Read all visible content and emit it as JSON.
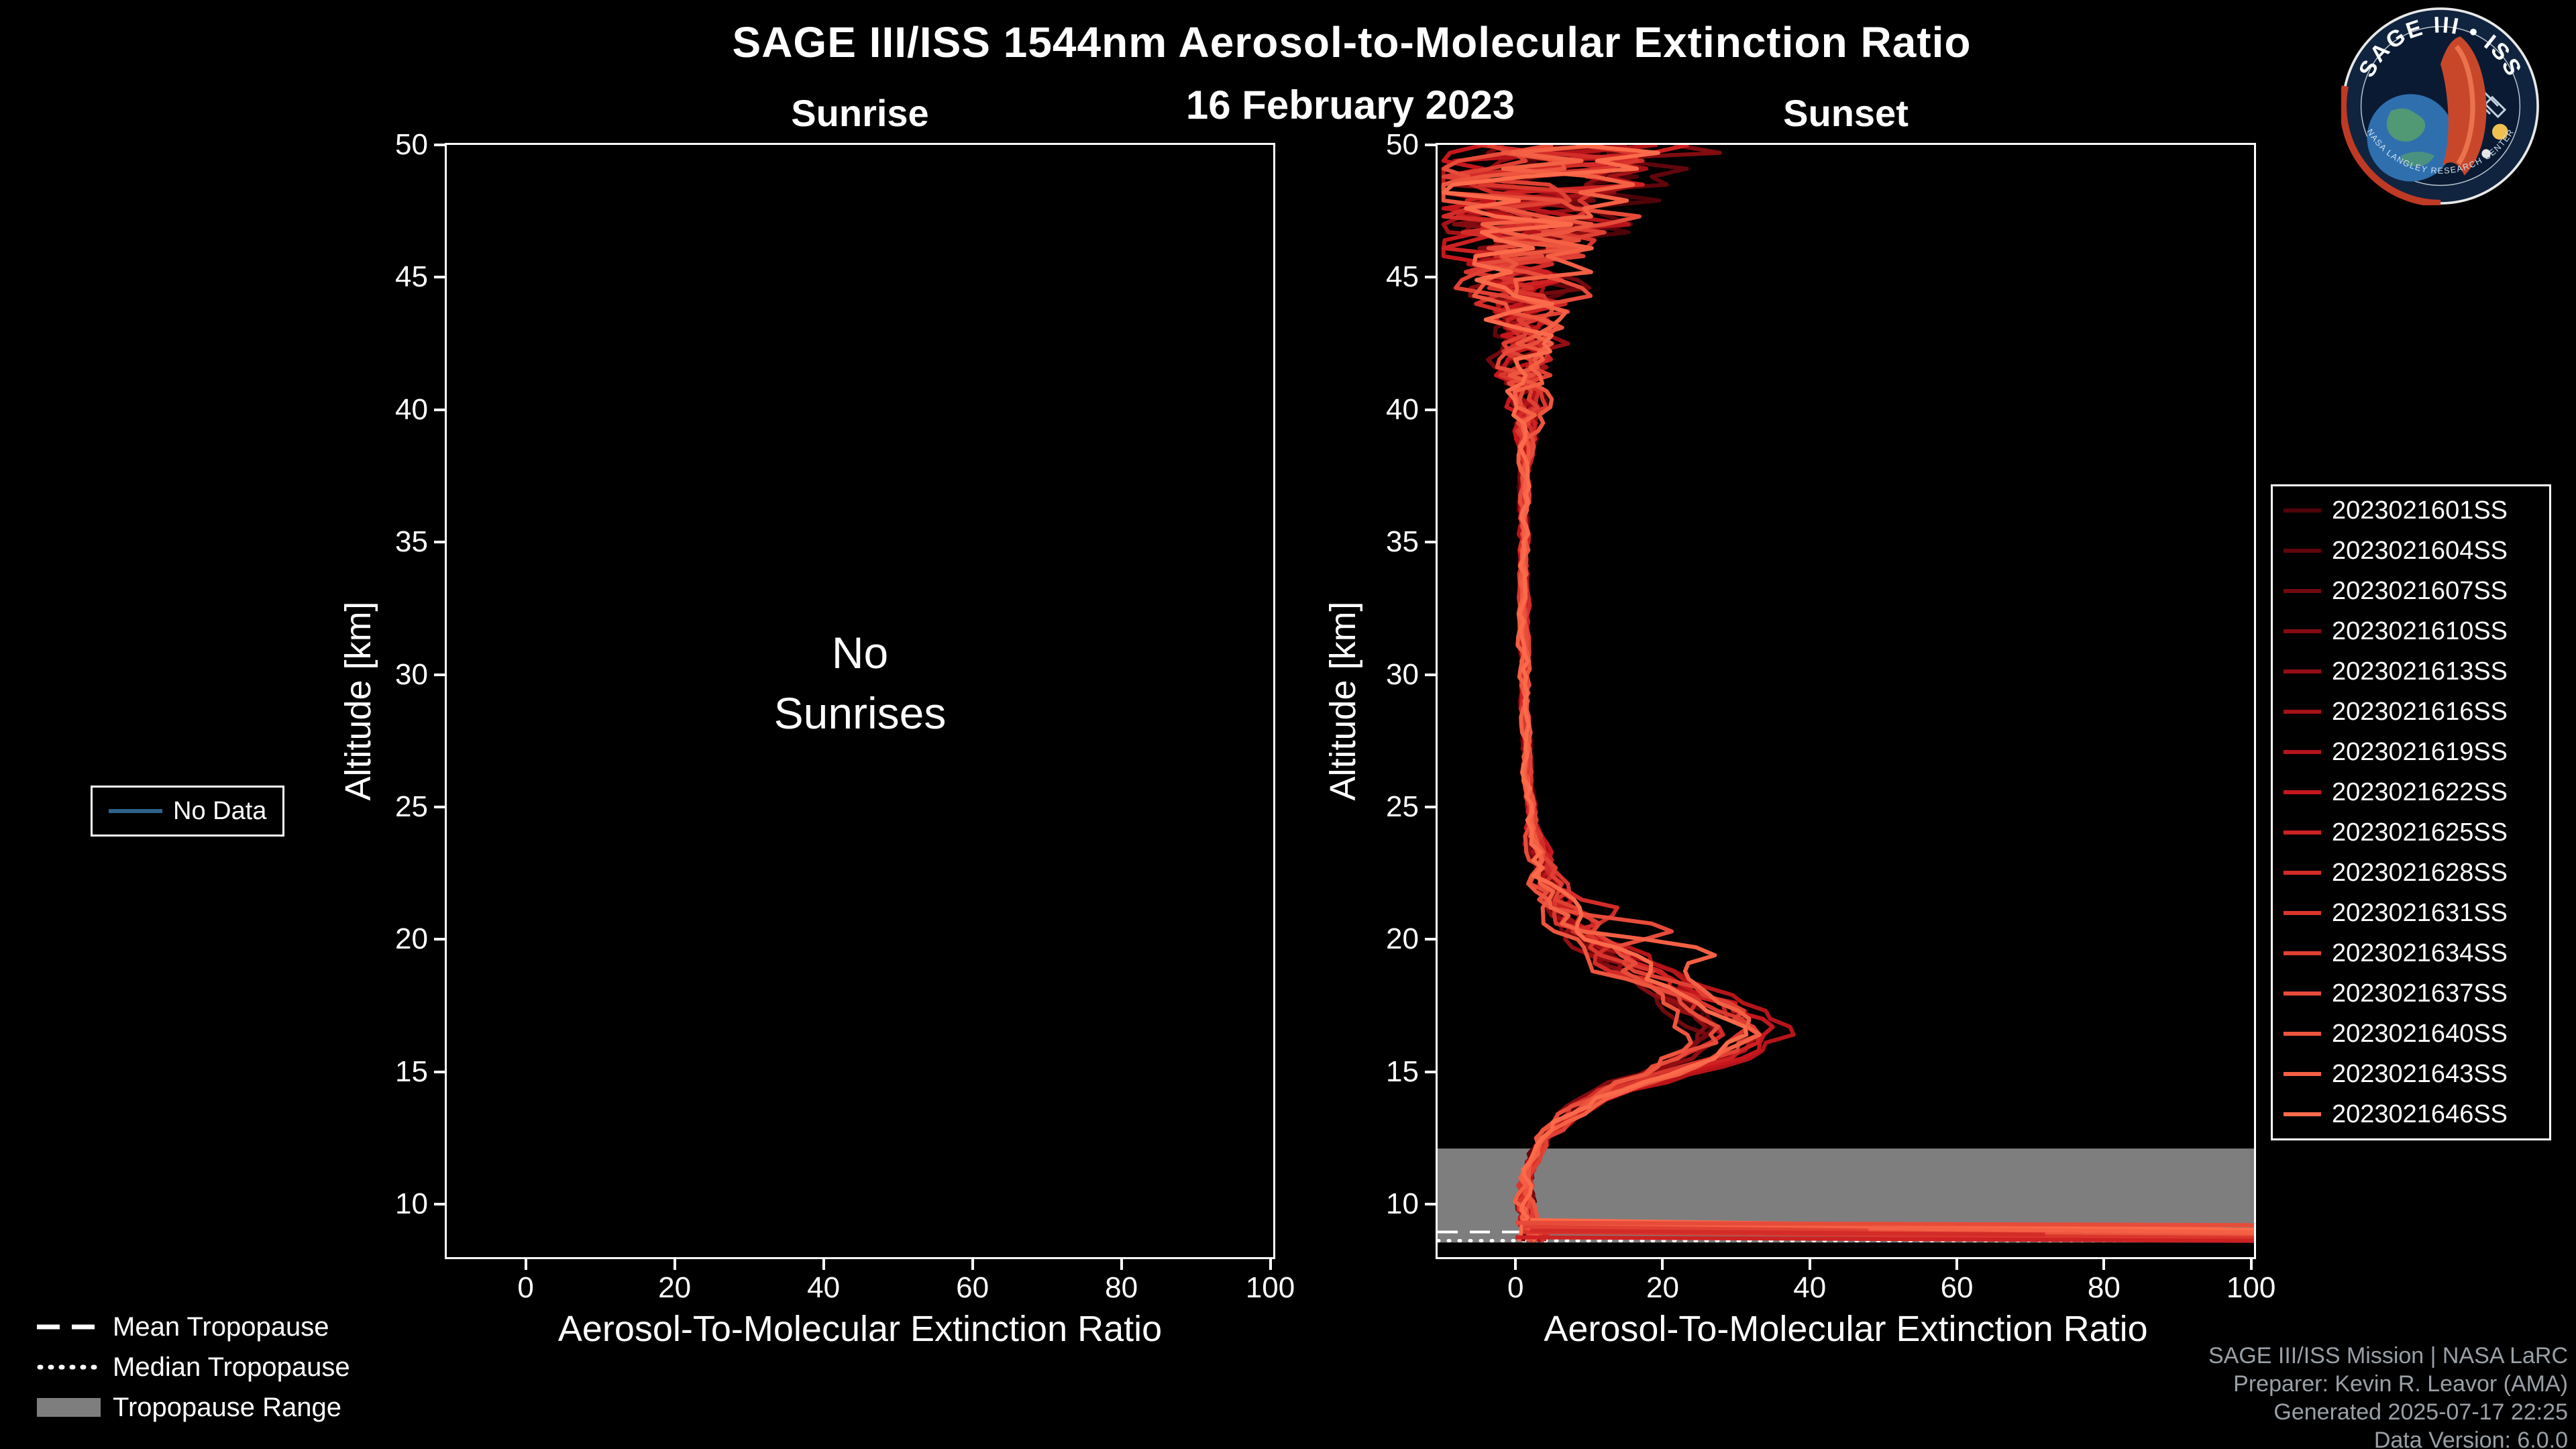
{
  "header": {
    "title": "SAGE III/ISS 1544nm Aerosol-to-Molecular Extinction Ratio",
    "date": "16 February 2023"
  },
  "logo": {
    "ring_text": "SAGE III • ISS",
    "bottom_text": "NASA LANGLEY RESEARCH CENTER"
  },
  "no_data_legend": {
    "label": "No Data",
    "color": "#2e6389"
  },
  "tropopause_legend": [
    {
      "label": "Mean Tropopause",
      "style": "dashed"
    },
    {
      "label": "Median Tropopause",
      "style": "dotted"
    },
    {
      "label": "Tropopause Range",
      "style": "band",
      "color": "#7e7e7e"
    }
  ],
  "footer": {
    "lines": [
      "SAGE III/ISS Mission | NASA LaRC",
      "Preparer: Kevin R. Leavor (AMA)",
      "Generated 2025-07-17 22:25",
      "Data Version: 6.0.0"
    ]
  },
  "chart_data": [
    {
      "id": "sunrise",
      "type": "line",
      "title": "Sunrise",
      "xlabel": "Aerosol-To-Molecular Extinction Ratio",
      "ylabel": "Altitude [km]",
      "xlim": [
        -10.6,
        100.4
      ],
      "ylim": [
        8,
        50
      ],
      "xticks": [
        0,
        20,
        40,
        60,
        80,
        100
      ],
      "yticks": [
        10,
        15,
        20,
        25,
        30,
        35,
        40,
        45,
        50
      ],
      "annotation_lines": [
        "No",
        "Sunrises"
      ],
      "series": []
    },
    {
      "id": "sunset",
      "type": "line",
      "title": "Sunset",
      "xlabel": "Aerosol-To-Molecular Extinction Ratio",
      "ylabel": "Altitude [km]",
      "xlim": [
        -10.6,
        100.4
      ],
      "ylim": [
        8,
        50
      ],
      "xticks": [
        0,
        20,
        40,
        60,
        80,
        100
      ],
      "yticks": [
        10,
        15,
        20,
        25,
        30,
        35,
        40,
        45,
        50
      ],
      "series": [
        {
          "name": "2023021601SS",
          "color": "#4f0309"
        },
        {
          "name": "2023021604SS",
          "color": "#60060c"
        },
        {
          "name": "2023021607SS",
          "color": "#71090e"
        },
        {
          "name": "2023021610SS",
          "color": "#820c11"
        },
        {
          "name": "2023021613SS",
          "color": "#930e14"
        },
        {
          "name": "2023021616SS",
          "color": "#a41116"
        },
        {
          "name": "2023021619SS",
          "color": "#b51419"
        },
        {
          "name": "2023021622SS",
          "color": "#c6171c"
        },
        {
          "name": "2023021625SS",
          "color": "#cd2122"
        },
        {
          "name": "2023021628SS",
          "color": "#d32c28"
        },
        {
          "name": "2023021631SS",
          "color": "#da362d"
        },
        {
          "name": "2023021634SS",
          "color": "#e04033"
        },
        {
          "name": "2023021637SS",
          "color": "#e74b39"
        },
        {
          "name": "2023021640SS",
          "color": "#ed553e"
        },
        {
          "name": "2023021643SS",
          "color": "#f46044"
        },
        {
          "name": "2023021646SS",
          "color": "#fb6a4a"
        }
      ],
      "profile": {
        "altitudes": [
          8.5,
          9,
          9.5,
          10,
          10.5,
          11,
          11.5,
          12,
          12.5,
          13,
          13.5,
          14,
          14.5,
          15,
          15.5,
          16,
          16.5,
          17,
          17.5,
          18,
          18.5,
          19,
          19.5,
          20,
          20.5,
          21,
          21.5,
          22,
          22.5,
          23,
          24,
          25,
          26,
          28,
          30,
          32,
          34,
          36,
          38,
          40,
          42,
          44,
          46,
          48,
          50
        ],
        "values": [
          2.5,
          2.5,
          2.0,
          1.5,
          1.5,
          1.8,
          2.2,
          3.0,
          4.0,
          5.5,
          8.0,
          11.0,
          15.0,
          20.0,
          25.0,
          28.0,
          29.5,
          27.5,
          25.0,
          22.0,
          19.0,
          16.0,
          13.0,
          10.0,
          8.0,
          6.5,
          5.5,
          4.5,
          3.7,
          3.0,
          2.3,
          2.0,
          1.6,
          1.3,
          1.2,
          1.1,
          1.1,
          1.2,
          1.3,
          1.4,
          1.5,
          1.5,
          1.6,
          1.8,
          2.0
        ]
      },
      "noise_amplitude": {
        "altitudes": [
          8,
          9.5,
          12,
          14,
          19,
          21,
          23,
          25,
          38,
          39,
          41,
          43,
          45,
          47,
          50
        ],
        "values": [
          1.6,
          1.2,
          0.7,
          1.2,
          2.6,
          2.2,
          1.3,
          0.5,
          0.5,
          1.2,
          3.0,
          4.5,
          6.5,
          12,
          15
        ]
      },
      "bulge_scale_range": [
        0.78,
        1.23
      ],
      "extra_bumps": [
        {
          "series": 12,
          "alt": 20.3,
          "amp": 15,
          "width": 0.5
        },
        {
          "series": 9,
          "alt": 21.0,
          "amp": 9,
          "width": 0.6
        },
        {
          "series": 14,
          "alt": 19.6,
          "amp": 10,
          "width": 0.5
        },
        {
          "series": 6,
          "alt": 47.8,
          "amp": 18,
          "width": 0.7
        }
      ],
      "streaks": [
        {
          "series": 15,
          "a1": 9.4,
          "v1": 2,
          "a2": 9.0,
          "v2": 110
        },
        {
          "series": 14,
          "a1": 9.25,
          "v1": 1,
          "a2": 8.9,
          "v2": 110
        },
        {
          "series": 13,
          "a1": 9.1,
          "v1": 2,
          "a2": 8.75,
          "v2": 110
        },
        {
          "series": 12,
          "a1": 9.3,
          "v1": 0,
          "a2": 9.2,
          "v2": 110
        },
        {
          "series": 10,
          "a1": 8.95,
          "v1": 1,
          "a2": 8.7,
          "v2": 110
        },
        {
          "series": 8,
          "a1": 8.75,
          "v1": 0,
          "a2": 8.6,
          "v2": 110
        },
        {
          "series": 11,
          "a1": 9.15,
          "v1": 1,
          "a2": 9.0,
          "v2": 48
        },
        {
          "series": 9,
          "a1": 9.0,
          "v1": 2,
          "a2": 8.85,
          "v2": 72
        }
      ],
      "tropopause": {
        "mean": 8.95,
        "median": 8.62,
        "range": [
          8.55,
          12.1
        ],
        "band_color": "#7e7e7e"
      }
    }
  ]
}
